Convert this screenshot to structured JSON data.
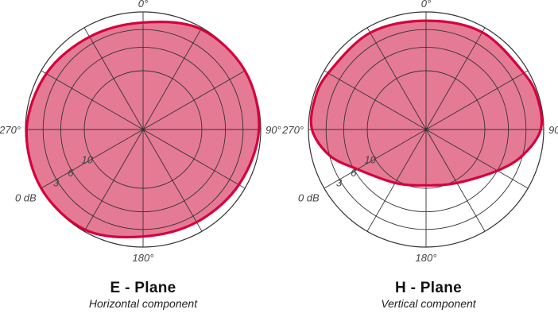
{
  "chart_data": [
    {
      "type": "polar",
      "title": "E - Plane",
      "subtitle": "Horizontal component",
      "angle_labels": [
        "0°",
        "90°",
        "180°",
        "270°"
      ],
      "ring_labels": [
        "0 dB",
        "3",
        "6",
        "10"
      ],
      "ring_values_db": [
        0,
        3,
        6,
        10,
        20
      ],
      "radial_line_step_deg": 30,
      "series": [
        {
          "angles_deg": [
            0,
            30,
            60,
            90,
            120,
            150,
            180,
            210,
            240,
            270,
            300,
            330
          ],
          "values_db": [
            1.8,
            0.3,
            0.0,
            0.3,
            1.2,
            1.8,
            1.8,
            0.3,
            0.0,
            0.2,
            1.0,
            1.8
          ],
          "color": "#d6003c",
          "fill": "#e57a95"
        }
      ]
    },
    {
      "type": "polar",
      "title": "H - Plane",
      "subtitle": "Vertical component",
      "angle_labels": [
        "0°",
        "90°",
        "180°",
        "270°"
      ],
      "ring_labels": [
        "0 dB",
        "3",
        "6",
        "10"
      ],
      "ring_values_db": [
        0,
        3,
        6,
        10,
        20
      ],
      "radial_line_step_deg": 30,
      "series": [
        {
          "angles_deg": [
            0,
            30,
            60,
            75,
            90,
            105,
            120,
            150,
            180,
            210,
            240,
            255,
            270,
            285,
            300,
            330
          ],
          "values_db": [
            1.5,
            0.9,
            0.8,
            0.3,
            0.5,
            3.0,
            6.0,
            9.5,
            10.5,
            9.5,
            6.5,
            3.0,
            0.6,
            0.4,
            0.8,
            1.0
          ],
          "color": "#d6003c",
          "fill": "#e57a95"
        }
      ]
    }
  ]
}
